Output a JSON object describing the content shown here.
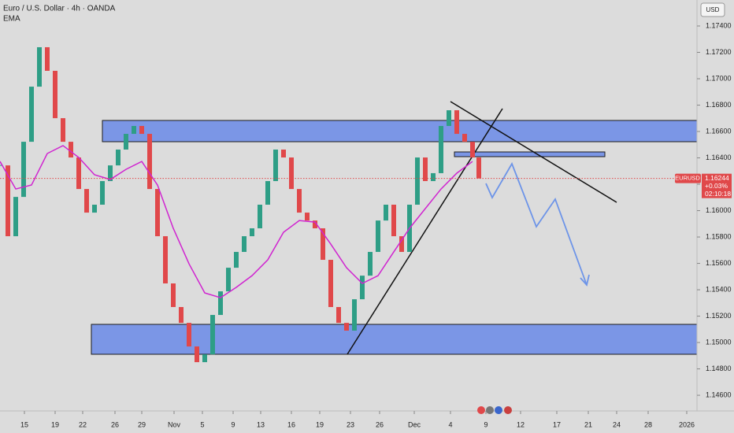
{
  "chart_data": {
    "type": "candlestick",
    "title": "Euro / U.S. Dollar · 4h · OANDA",
    "series": [
      {
        "name": "EURUSD",
        "up_color": "#2e9e86",
        "down_color": "#e0484a",
        "x": [
          0,
          1,
          2,
          3,
          4,
          5,
          6,
          7,
          8,
          9,
          10,
          11,
          12,
          13,
          14,
          15,
          16,
          17,
          18,
          19,
          20,
          21,
          22,
          23,
          24,
          25,
          26,
          27,
          28,
          29,
          30,
          31,
          32,
          33,
          34,
          35,
          36,
          37,
          38,
          39,
          40,
          41,
          42,
          43,
          44,
          45,
          46,
          47,
          48,
          49,
          50,
          51,
          52,
          53,
          54,
          55,
          56,
          57,
          58,
          59,
          60,
          60.8
        ],
        "values": [
          1.16343,
          1.15806,
          1.16104,
          1.16522,
          1.1694,
          1.17239,
          1.1706,
          1.16701,
          1.16522,
          1.16403,
          1.16164,
          1.15985,
          1.16045,
          1.16224,
          1.16343,
          1.16463,
          1.16582,
          1.16642,
          1.16582,
          1.16164,
          1.15806,
          1.15448,
          1.15269,
          1.15149,
          1.1497,
          1.14851,
          1.1491,
          1.15209,
          1.15388,
          1.15567,
          1.15687,
          1.15806,
          1.15866,
          1.16045,
          1.16224,
          1.16463,
          1.16403,
          1.16164,
          1.15985,
          1.15925,
          1.15866,
          1.15627,
          1.15269,
          1.15149,
          1.1509,
          1.15328,
          1.15507,
          1.15687,
          1.15925,
          1.16045,
          1.15806,
          1.15687,
          1.16045,
          1.16403,
          1.16224,
          1.16284,
          1.16642,
          1.16761,
          1.16582,
          1.16522,
          1.16403,
          1.16244
        ]
      },
      {
        "name": "EMA",
        "type": "line",
        "color": "#d024d0",
        "x": [
          0,
          2,
          4,
          6,
          8,
          10,
          12,
          14,
          16,
          18,
          20,
          22,
          24,
          26,
          28,
          30,
          32,
          34,
          36,
          38,
          40,
          42,
          44,
          46,
          48,
          50,
          52,
          54,
          56,
          58,
          60
        ],
        "values": [
          1.16373,
          1.16164,
          1.16194,
          1.16433,
          1.16493,
          1.16403,
          1.16272,
          1.16236,
          1.16313,
          1.16373,
          1.16194,
          1.15866,
          1.15597,
          1.15376,
          1.1534,
          1.15418,
          1.15507,
          1.15627,
          1.15836,
          1.15925,
          1.15913,
          1.15746,
          1.15567,
          1.15448,
          1.15507,
          1.15687,
          1.15866,
          1.16015,
          1.16164,
          1.16284,
          1.16373
        ]
      }
    ],
    "current_price": {
      "value": 1.16244,
      "label": "1.16244"
    },
    "change": "+0.03%",
    "countdown": "02:10:18",
    "currency": "USD",
    "xlim": [
      0,
      88.5
    ],
    "ylim": [
      1.14493,
      1.17597
    ],
    "xticks": [
      {
        "value": 3.1,
        "label": "15"
      },
      {
        "value": 7.0,
        "label": "19"
      },
      {
        "value": 10.5,
        "label": "22"
      },
      {
        "value": 14.6,
        "label": "26"
      },
      {
        "value": 18.0,
        "label": "29"
      },
      {
        "value": 22.1,
        "label": "Nov"
      },
      {
        "value": 25.7,
        "label": "5"
      },
      {
        "value": 29.6,
        "label": "9"
      },
      {
        "value": 33.1,
        "label": "13"
      },
      {
        "value": 37.0,
        "label": "16"
      },
      {
        "value": 40.6,
        "label": "19"
      },
      {
        "value": 44.5,
        "label": "23"
      },
      {
        "value": 48.2,
        "label": "26"
      },
      {
        "value": 52.6,
        "label": "Dec"
      },
      {
        "value": 57.2,
        "label": "4"
      },
      {
        "value": 61.7,
        "label": "9"
      },
      {
        "value": 66.1,
        "label": "12"
      },
      {
        "value": 70.7,
        "label": "17"
      },
      {
        "value": 74.7,
        "label": "21"
      },
      {
        "value": 78.3,
        "label": "24"
      },
      {
        "value": 82.3,
        "label": "28"
      },
      {
        "value": 87.2,
        "label": "2026"
      }
    ],
    "yticks": [
      {
        "value": 1.174,
        "label": "1.17400"
      },
      {
        "value": 1.172,
        "label": "1.17200"
      },
      {
        "value": 1.17,
        "label": "1.17000"
      },
      {
        "value": 1.168,
        "label": "1.16800"
      },
      {
        "value": 1.166,
        "label": "1.16600"
      },
      {
        "value": 1.164,
        "label": "1.16400"
      },
      {
        "value": 1.162,
        "label": "1.16200"
      },
      {
        "value": 1.16,
        "label": "1.16000"
      },
      {
        "value": 1.158,
        "label": "1.15800"
      },
      {
        "value": 1.156,
        "label": "1.15600"
      },
      {
        "value": 1.154,
        "label": "1.15400"
      },
      {
        "value": 1.152,
        "label": "1.15200"
      },
      {
        "value": 1.15,
        "label": "1.15000"
      },
      {
        "value": 1.148,
        "label": "1.14800"
      },
      {
        "value": 1.146,
        "label": "1.14600"
      }
    ]
  }
}
